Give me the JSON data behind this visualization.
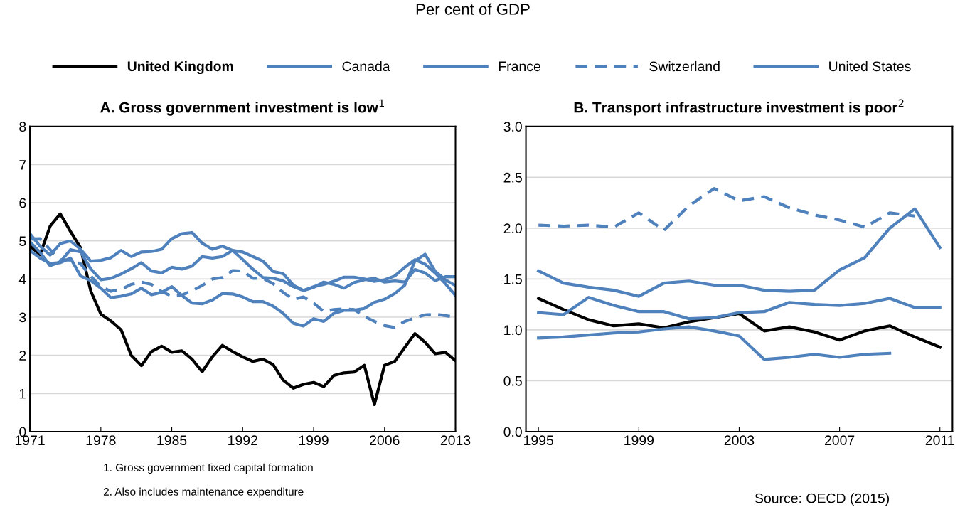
{
  "chart_data": [
    {
      "type": "line",
      "title": "A. Gross government investment is low$^{1}$",
      "legend": "top",
      "grid": "y",
      "x": [
        1971,
        1972,
        1973,
        1974,
        1975,
        1976,
        1977,
        1978,
        1979,
        1980,
        1981,
        1982,
        1983,
        1984,
        1985,
        1986,
        1987,
        1988,
        1989,
        1990,
        1991,
        1992,
        1993,
        1994,
        1995,
        1996,
        1997,
        1998,
        1999,
        2000,
        2001,
        2002,
        2003,
        2004,
        2005,
        2006,
        2007,
        2008,
        2009,
        2010,
        2011,
        2012,
        2013
      ],
      "xlim": [
        1971,
        2013
      ],
      "xticks": [
        1971,
        1978,
        1985,
        1992,
        1999,
        2006,
        2013
      ],
      "ylim": [
        0,
        8
      ],
      "yticks": [
        0,
        1,
        2,
        3,
        4,
        5,
        6,
        7,
        8
      ],
      "annotations": [
        "Per cent of GDP",
        "1. Gross government fixed capital formation",
        "2. Also includes maintenance expenditure",
        "Source: OECD (2015)"
      ],
      "series": [
        {
          "name": "United Kingdom",
          "color": "#000000",
          "line_style": "solid",
          "values": [
            4.87,
            4.64,
            5.39,
            5.71,
            5.25,
            4.82,
            3.69,
            3.08,
            2.9,
            2.67,
            2.0,
            1.73,
            2.1,
            2.24,
            2.08,
            2.12,
            1.9,
            1.57,
            1.96,
            2.26,
            2.1,
            1.96,
            1.84,
            1.9,
            1.76,
            1.35,
            1.14,
            1.24,
            1.29,
            1.18,
            1.47,
            1.54,
            1.56,
            1.74,
            0.71,
            1.74,
            1.84,
            2.21,
            2.57,
            2.34,
            2.04,
            2.08,
            1.86
          ]
        },
        {
          "name": "Canada",
          "color": "#4f81bd",
          "line_style": "solid",
          "values": [
            4.75,
            4.55,
            4.41,
            4.43,
            4.55,
            4.08,
            3.96,
            3.76,
            3.51,
            3.55,
            3.61,
            3.76,
            3.59,
            3.65,
            3.8,
            3.57,
            3.37,
            3.35,
            3.45,
            3.62,
            3.61,
            3.53,
            3.41,
            3.41,
            3.29,
            3.1,
            2.84,
            2.77,
            2.96,
            2.89,
            3.1,
            3.18,
            3.18,
            3.23,
            3.39,
            3.47,
            3.62,
            3.84,
            4.47,
            4.65,
            4.2,
            3.98,
            3.83
          ]
        },
        {
          "name": "France",
          "color": "#4f81bd",
          "line_style": "solid",
          "values": [
            4.98,
            4.7,
            4.35,
            4.45,
            4.77,
            4.71,
            4.27,
            3.98,
            4.02,
            4.13,
            4.27,
            4.43,
            4.21,
            4.16,
            4.31,
            4.26,
            4.34,
            4.59,
            4.55,
            4.59,
            4.75,
            4.71,
            4.59,
            4.47,
            4.2,
            4.14,
            3.84,
            3.7,
            3.78,
            3.92,
            3.86,
            3.76,
            3.91,
            3.98,
            4.02,
            3.92,
            3.95,
            3.92,
            4.25,
            4.16,
            3.96,
            4.06,
            4.06
          ]
        },
        {
          "name": "Switzerland",
          "color": "#4f81bd",
          "line_style": "dashed",
          "values": [
            5.05,
            5.06,
            4.77,
            4.5,
            4.5,
            4.4,
            4.08,
            3.8,
            3.68,
            3.73,
            3.86,
            3.92,
            3.86,
            3.67,
            3.55,
            3.58,
            3.69,
            3.83,
            4.0,
            4.04,
            4.22,
            4.21,
            4.02,
            4.02,
            3.88,
            3.65,
            3.47,
            3.53,
            3.37,
            3.15,
            3.2,
            3.22,
            3.2,
            3.02,
            2.89,
            2.78,
            2.73,
            2.89,
            2.98,
            3.06,
            3.08,
            3.04,
            3.0
          ]
        },
        {
          "name": "United States",
          "color": "#4f81bd",
          "line_style": "solid",
          "values": [
            5.19,
            4.86,
            4.63,
            4.93,
            5.0,
            4.78,
            4.47,
            4.49,
            4.56,
            4.75,
            4.59,
            4.71,
            4.72,
            4.78,
            5.06,
            5.19,
            5.22,
            4.94,
            4.78,
            4.86,
            4.75,
            4.51,
            4.26,
            4.04,
            4.02,
            3.95,
            3.8,
            3.7,
            3.8,
            3.86,
            3.94,
            4.05,
            4.05,
            4.0,
            3.94,
            3.98,
            4.08,
            4.31,
            4.51,
            4.39,
            4.16,
            3.88,
            3.57
          ]
        }
      ]
    },
    {
      "type": "line",
      "title": "B. Transport infrastructure investment is poor$^{2}$",
      "grid": "y",
      "x": [
        1995,
        1996,
        1997,
        1998,
        1999,
        2000,
        2001,
        2002,
        2003,
        2004,
        2005,
        2006,
        2007,
        2008,
        2009,
        2010,
        2011
      ],
      "xlim": [
        1994.5,
        2011.5
      ],
      "xticks": [
        1995,
        1999,
        2003,
        2007,
        2011
      ],
      "ylim": [
        0,
        3
      ],
      "yticks": [
        {
          "value": 0,
          "label": "0.0"
        },
        {
          "value": 0.5,
          "label": "0.5"
        },
        {
          "value": 1,
          "label": "1.0"
        },
        {
          "value": 1.5,
          "label": "1.5"
        },
        {
          "value": 2,
          "label": "2.0"
        },
        {
          "value": 2.5,
          "label": "2.5"
        },
        {
          "value": 3,
          "label": "3.0"
        }
      ],
      "series": [
        {
          "color": "#000000",
          "line_style": "solid",
          "values": [
            1.31,
            1.2,
            1.1,
            1.04,
            1.06,
            1.02,
            1.08,
            1.12,
            1.16,
            0.99,
            1.03,
            0.98,
            0.9,
            0.99,
            1.04,
            0.93,
            0.83
          ]
        },
        {
          "color": "#4f81bd",
          "line_style": "solid",
          "values": [
            1.58,
            1.46,
            1.42,
            1.39,
            1.33,
            1.46,
            1.48,
            1.44,
            1.44,
            1.39,
            1.38,
            1.39,
            1.59,
            1.71,
            2.0,
            2.19,
            1.81
          ]
        },
        {
          "color": "#4f81bd",
          "line_style": "solid",
          "values": [
            1.17,
            1.15,
            1.32,
            1.24,
            1.18,
            1.18,
            1.11,
            1.12,
            1.17,
            1.18,
            1.27,
            1.25,
            1.24,
            1.26,
            1.31,
            1.22,
            1.22
          ]
        },
        {
          "color": "#4f81bd",
          "line_style": "dashed",
          "values": [
            2.03,
            2.02,
            2.03,
            2.01,
            2.15,
            1.98,
            2.22,
            2.39,
            2.27,
            2.31,
            2.2,
            2.13,
            2.08,
            2.01,
            2.15,
            2.12,
            null
          ]
        },
        {
          "color": "#4f81bd",
          "line_style": "solid",
          "values": [
            0.92,
            0.93,
            0.95,
            0.97,
            0.98,
            1.01,
            1.03,
            0.99,
            0.94,
            0.71,
            0.73,
            0.76,
            0.73,
            0.76,
            0.77,
            null,
            null
          ]
        }
      ]
    }
  ]
}
